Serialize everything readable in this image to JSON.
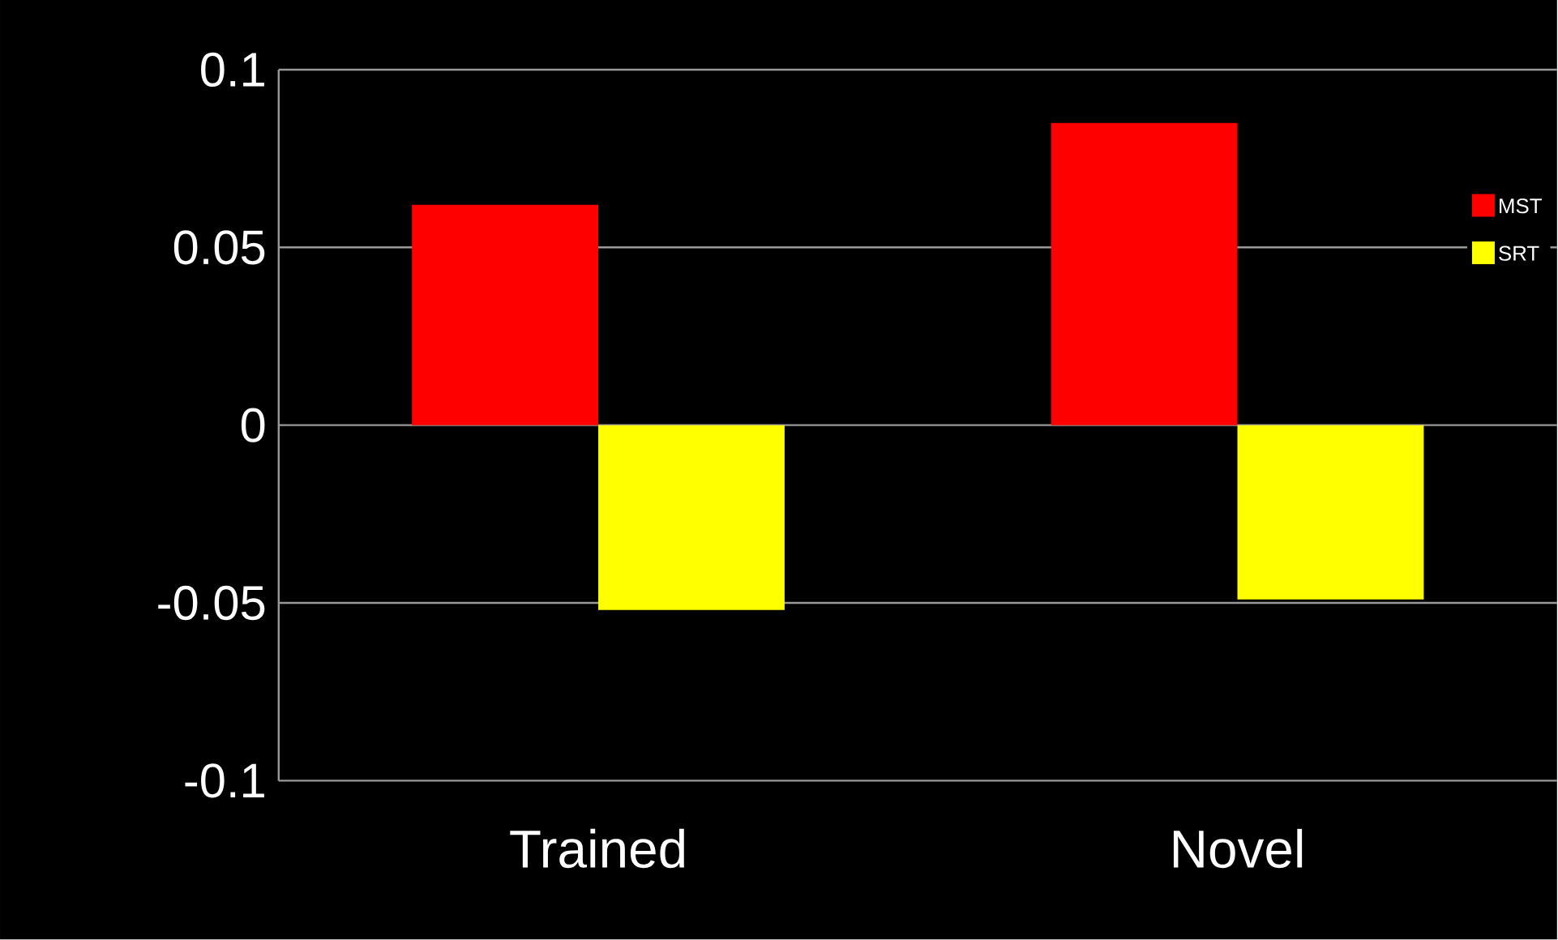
{
  "chart_data": {
    "type": "bar",
    "categories": [
      "Trained",
      "Novel"
    ],
    "series": [
      {
        "name": "MST",
        "color": "#ff0000",
        "values": [
          0.062,
          0.085
        ]
      },
      {
        "name": "SRT",
        "color": "#ffff00",
        "values": [
          -0.052,
          -0.049
        ]
      }
    ],
    "ylim": [
      -0.1,
      0.1
    ],
    "yticks": [
      -0.1,
      -0.05,
      0,
      0.05,
      0.1
    ],
    "grid": "y",
    "legend": "top right"
  }
}
